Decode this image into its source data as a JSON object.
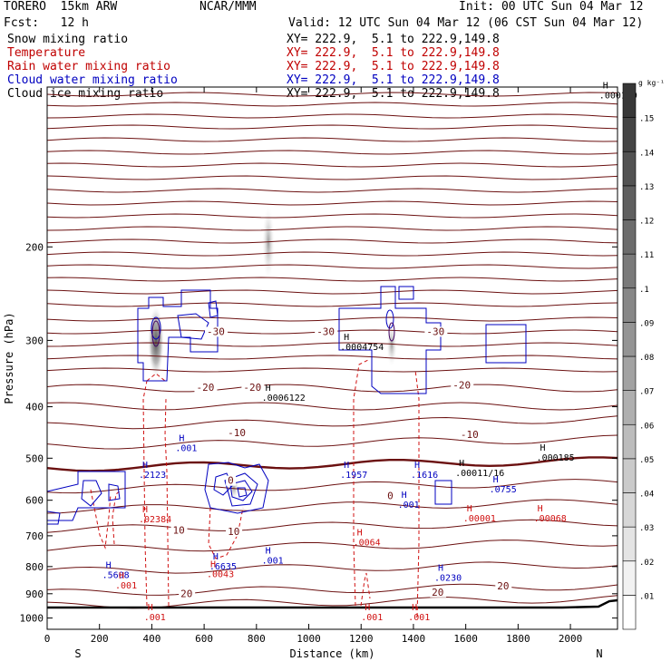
{
  "header": {
    "model": "TORERO  15km ARW",
    "center": "NCAR/MMM",
    "init": "Init: 00 UTC Sun 04 Mar 12",
    "fcst": "Fcst:   12 h",
    "valid": "Valid: 12 UTC Sun 04 Mar 12 (06 CST Sun 04 Mar 12)"
  },
  "fields": [
    {
      "label": "Snow mixing ratio",
      "xy": "XY= 222.9,  5.1 to 222.9,149.8",
      "color": "#000000"
    },
    {
      "label": "Temperature",
      "xy": "XY= 222.9,  5.1 to 222.9,149.8",
      "color": "#c00000"
    },
    {
      "label": "Rain water mixing ratio",
      "xy": "XY= 222.9,  5.1 to 222.9,149.8",
      "color": "#c00000"
    },
    {
      "label": "Cloud water mixing ratio",
      "xy": "XY= 222.9,  5.1 to 222.9,149.8",
      "color": "#0000c0"
    },
    {
      "label": "Cloud ice mixing ratio",
      "xy": "XY= 222.9,  5.1 to 222.9,149.8",
      "color": "#000000"
    }
  ],
  "chart_data": {
    "type": "cross-section",
    "xlabel": "Distance (km)",
    "ylabel": "Pressure (hPa)",
    "x_ticks": [
      0,
      200,
      400,
      600,
      800,
      1000,
      1200,
      1400,
      1600,
      1800,
      2000
    ],
    "y_ticks": [
      200,
      300,
      400,
      500,
      600,
      700,
      800,
      900,
      1000
    ],
    "xlim": [
      0,
      2180
    ],
    "ylim": [
      1050,
      100
    ],
    "y_scale": "log",
    "endpoints": {
      "left": "S",
      "right": "N"
    },
    "colorbar": {
      "unit": "g kg⁻¹",
      "ticks": [
        ".01",
        ".02",
        ".03",
        ".04",
        ".05",
        ".06",
        ".07",
        ".08",
        ".09",
        ".1",
        ".11",
        ".12",
        ".13",
        ".14",
        ".15"
      ]
    },
    "temperature_labels": [
      {
        "text": "-30",
        "x": 610,
        "p": 293
      },
      {
        "text": "-30",
        "x": 1030,
        "p": 293
      },
      {
        "text": "-30",
        "x": 1450,
        "p": 293
      },
      {
        "text": "-20",
        "x": 570,
        "p": 373
      },
      {
        "text": "-20",
        "x": 750,
        "p": 373
      },
      {
        "text": "-20",
        "x": 1550,
        "p": 370
      },
      {
        "text": "-10",
        "x": 690,
        "p": 454
      },
      {
        "text": "-10",
        "x": 1580,
        "p": 458
      },
      {
        "text": "0",
        "x": 690,
        "p": 559
      },
      {
        "text": "0",
        "x": 1300,
        "p": 597
      },
      {
        "text": "10",
        "x": 480,
        "p": 693
      },
      {
        "text": "10",
        "x": 690,
        "p": 697
      },
      {
        "text": "20",
        "x": 510,
        "p": 913
      },
      {
        "text": "20",
        "x": 1470,
        "p": 907
      },
      {
        "text": "20",
        "x": 1720,
        "p": 883
      }
    ],
    "maxima_labels": [
      {
        "text": ".000109",
        "x": 2110,
        "p": 105,
        "field": "snow"
      },
      {
        "text": ".0004754",
        "x": 1120,
        "p": 313,
        "field": "snow"
      },
      {
        "text": ".0006122",
        "x": 820,
        "p": 390,
        "field": "snow"
      },
      {
        "text": ".000185",
        "x": 1870,
        "p": 505,
        "field": "snow"
      },
      {
        "text": ".00011/16",
        "x": 1560,
        "p": 540,
        "field": "snow"
      },
      {
        "text": ".2123",
        "x": 350,
        "p": 545,
        "field": "cloud_water"
      },
      {
        "text": ".001",
        "x": 490,
        "p": 485,
        "field": "cloud_water"
      },
      {
        "text": ".1957",
        "x": 1120,
        "p": 545,
        "field": "cloud_water"
      },
      {
        "text": ".1616",
        "x": 1390,
        "p": 545,
        "field": "cloud_water"
      },
      {
        "text": ".0755",
        "x": 1690,
        "p": 580,
        "field": "cloud_water"
      },
      {
        "text": ".001",
        "x": 1340,
        "p": 620,
        "field": "cloud_water"
      },
      {
        "text": ".001",
        "x": 820,
        "p": 790,
        "field": "cloud_water"
      },
      {
        "text": ".0230",
        "x": 1480,
        "p": 850,
        "field": "cloud_water"
      },
      {
        "text": ".6635",
        "x": 620,
        "p": 810,
        "field": "cloud_water"
      },
      {
        "text": ".5608",
        "x": 210,
        "p": 840,
        "field": "cloud_water"
      },
      {
        "text": ".02384",
        "x": 350,
        "p": 660,
        "field": "rain"
      },
      {
        "text": ".0064",
        "x": 1170,
        "p": 730,
        "field": "rain"
      },
      {
        "text": ".00001",
        "x": 1590,
        "p": 658,
        "field": "rain"
      },
      {
        "text": ".00068",
        "x": 1860,
        "p": 658,
        "field": "rain"
      },
      {
        "text": ".0043",
        "x": 610,
        "p": 838,
        "field": "rain"
      },
      {
        "text": ".001",
        "x": 260,
        "p": 880,
        "field": "rain"
      },
      {
        "text": ".001",
        "x": 370,
        "p": 1010,
        "field": "rain"
      },
      {
        "text": ".001",
        "x": 1200,
        "p": 1010,
        "field": "rain"
      },
      {
        "text": ".001",
        "x": 1380,
        "p": 1010,
        "field": "rain"
      }
    ]
  }
}
